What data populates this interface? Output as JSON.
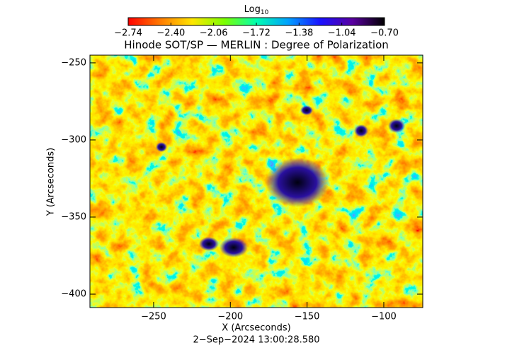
{
  "chart_data": {
    "type": "heatmap",
    "title": "Hinode SOT/SP — MERLIN : Degree of Polarization",
    "xlabel": "X (Arcseconds)",
    "ylabel": "Y (Arcseconds)",
    "footer": "2−Sep−2024 13:00:28.580",
    "colorbar_label": "Log",
    "colorbar_label_subscript": "10",
    "colormap": [
      "#ff0000",
      "#ff7a00",
      "#ffe600",
      "#7cff00",
      "#00ffb0",
      "#00a0ff",
      "#1a10ff",
      "#5a00a0",
      "#000000"
    ],
    "clim": [
      -2.74,
      -0.7
    ],
    "cticks": [
      {
        "value": -2.74,
        "label": "−2.74"
      },
      {
        "value": -2.4,
        "label": "−2.40"
      },
      {
        "value": -2.06,
        "label": "−2.06"
      },
      {
        "value": -1.72,
        "label": "−1.72"
      },
      {
        "value": -1.38,
        "label": "−1.38"
      },
      {
        "value": -1.04,
        "label": "−1.04"
      },
      {
        "value": -0.7,
        "label": "−0.70"
      }
    ],
    "xlim": [
      -291.5,
      -74.6
    ],
    "xticks": [
      {
        "value": -250,
        "label": "−250"
      },
      {
        "value": -200,
        "label": "−200"
      },
      {
        "value": -150,
        "label": "−150"
      },
      {
        "value": -100,
        "label": "−100"
      }
    ],
    "ylim": [
      -408.7,
      -245
    ],
    "yticks": [
      {
        "value": -250,
        "label": "−250"
      },
      {
        "value": -300,
        "label": "−300"
      },
      {
        "value": -350,
        "label": "−350"
      },
      {
        "value": -400,
        "label": "−400"
      }
    ]
  }
}
